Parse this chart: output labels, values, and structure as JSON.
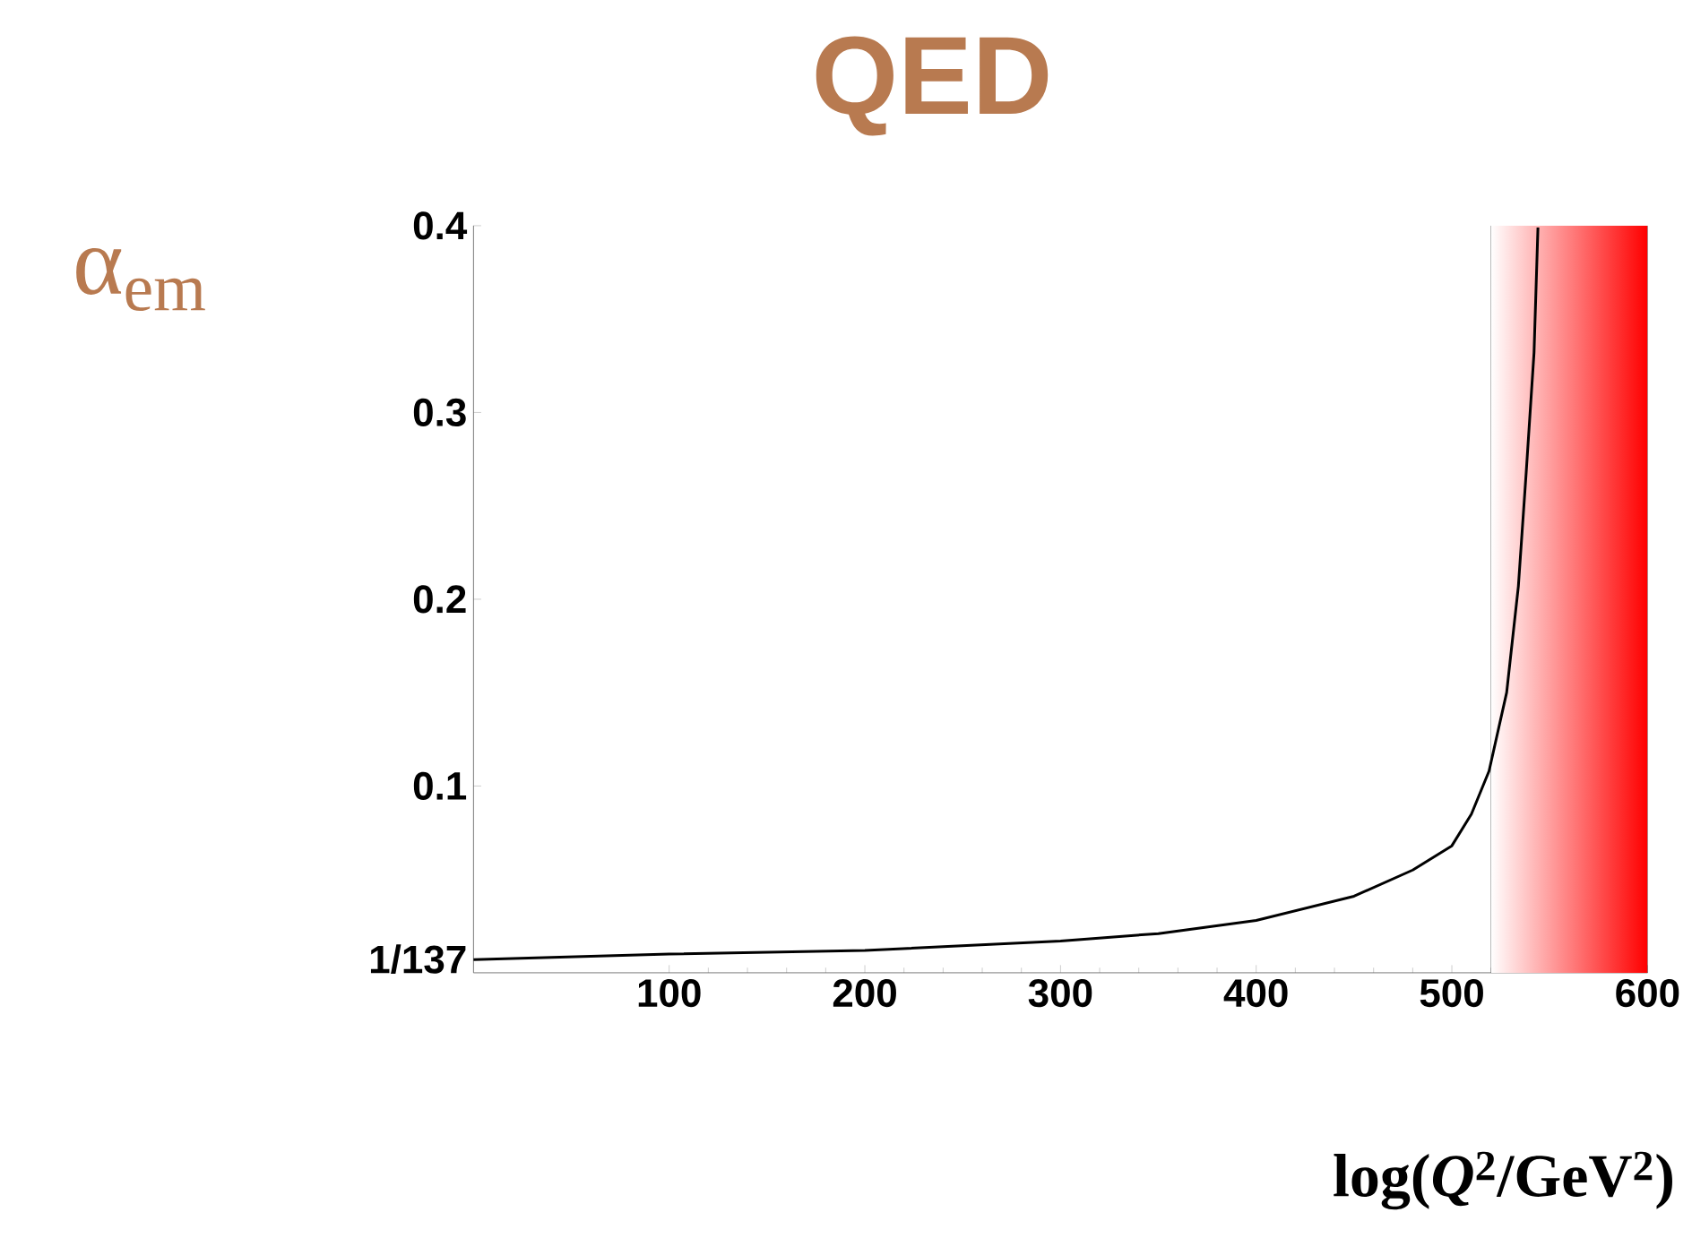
{
  "chart_data": {
    "type": "line",
    "title": "QED",
    "ylabel": "α$_{em}$",
    "xlabel": "log(*Q*$^{2}$/GeV$^{2}$)",
    "x": [
      0,
      100,
      200,
      300,
      350,
      400,
      450,
      480,
      500,
      510,
      519,
      528,
      534,
      538,
      542,
      544
    ],
    "values": [
      0.007,
      0.01,
      0.012,
      0.017,
      0.021,
      0.028,
      0.041,
      0.055,
      0.068,
      0.085,
      0.108,
      0.15,
      0.207,
      0.268,
      0.332,
      0.399
    ],
    "color": "#000000",
    "xlim": [
      0,
      600
    ],
    "ylim": [
      0,
      0.4
    ],
    "xticks": [
      100,
      200,
      300,
      400,
      500,
      600
    ],
    "yticks": [
      {
        "value": 0.0073,
        "label": "1/137"
      },
      0.1,
      0.2,
      0.3,
      0.4
    ],
    "bands": [
      {
        "axis": "x",
        "from": 520,
        "to": 600,
        "color": "#ff0000"
      }
    ]
  }
}
